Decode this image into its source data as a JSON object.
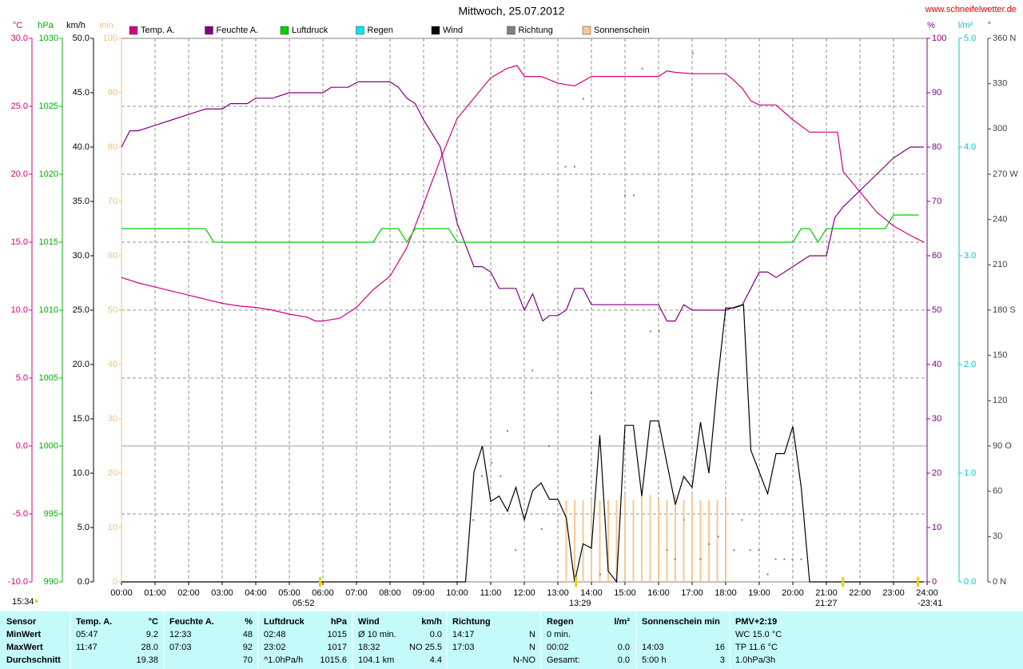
{
  "chart_data": {
    "type": "line",
    "title": "Mittwoch, 25.07.2012",
    "source": "www.schneifelwetter.de",
    "xlim": [
      0,
      24
    ],
    "xticks": [
      {
        "value": 0,
        "label": "00:00"
      },
      {
        "value": 1,
        "label": "01:00"
      },
      {
        "value": 2,
        "label": "02:00"
      },
      {
        "value": 3,
        "label": "03:00"
      },
      {
        "value": 4,
        "label": "04:00"
      },
      {
        "value": 5,
        "label": "05:00"
      },
      {
        "value": 6,
        "label": "06:00"
      },
      {
        "value": 7,
        "label": "07:00"
      },
      {
        "value": 8,
        "label": "08:00"
      },
      {
        "value": 9,
        "label": "09:00"
      },
      {
        "value": 10,
        "label": "10:00"
      },
      {
        "value": 11,
        "label": "11:00"
      },
      {
        "value": 12,
        "label": "12:00"
      },
      {
        "value": 13,
        "label": "13:00"
      },
      {
        "value": 14,
        "label": "14:00"
      },
      {
        "value": 15,
        "label": "15:00"
      },
      {
        "value": 16,
        "label": "16:00"
      },
      {
        "value": 17,
        "label": "17:00"
      },
      {
        "value": 18,
        "label": "18:00"
      },
      {
        "value": 19,
        "label": "19:00"
      },
      {
        "value": 20,
        "label": "20:00"
      },
      {
        "value": 21,
        "label": "21:00"
      },
      {
        "value": 22,
        "label": "22:00"
      },
      {
        "value": 23,
        "label": "23:00"
      },
      {
        "value": 24,
        "label": "24:00"
      }
    ],
    "grid": true,
    "grid_axis": "°C",
    "axes": [
      {
        "label": "°C",
        "side": "left",
        "color": "#d4007f",
        "lim": [
          -10,
          30
        ],
        "ticks": [
          {
            "value": -10,
            "label": "-10.0"
          },
          {
            "value": -5,
            "label": "-5.0"
          },
          {
            "value": 0,
            "label": "0.0"
          },
          {
            "value": 5,
            "label": "5.0"
          },
          {
            "value": 10,
            "label": "10.0"
          },
          {
            "value": 15,
            "label": "15.0"
          },
          {
            "value": 20,
            "label": "20.0"
          },
          {
            "value": 25,
            "label": "25.0"
          },
          {
            "value": 30,
            "label": "30.0"
          }
        ]
      },
      {
        "label": "hPa",
        "side": "left",
        "color": "#00b000",
        "lim": [
          990,
          1030
        ],
        "ticks": [
          990,
          995,
          1000,
          1005,
          1010,
          1015,
          1020,
          1025,
          1030
        ]
      },
      {
        "label": "km/h",
        "side": "left",
        "color": "#000000",
        "lim": [
          0,
          50
        ],
        "ticks": [
          {
            "value": 0,
            "label": "0.0"
          },
          {
            "value": 5,
            "label": "5.0"
          },
          {
            "value": 10,
            "label": "10.0"
          },
          {
            "value": 15,
            "label": "15.0"
          },
          {
            "value": 20,
            "label": "20.0"
          },
          {
            "value": 25,
            "label": "25.0"
          },
          {
            "value": 30,
            "label": "30.0"
          },
          {
            "value": 35,
            "label": "35.0"
          },
          {
            "value": 40,
            "label": "40.0"
          },
          {
            "value": 45,
            "label": "45.0"
          },
          {
            "value": 50,
            "label": "50.0"
          }
        ]
      },
      {
        "label": "min",
        "side": "left",
        "color": "#f0c080",
        "lim": [
          0,
          100
        ],
        "ticks": [
          0,
          10,
          20,
          30,
          40,
          50,
          60,
          70,
          80,
          90,
          100
        ]
      },
      {
        "label": "%",
        "side": "right",
        "color": "#800080",
        "lim": [
          0,
          100
        ],
        "ticks": [
          0,
          10,
          20,
          30,
          40,
          50,
          60,
          70,
          80,
          90,
          100
        ]
      },
      {
        "label": "l/m²",
        "side": "right",
        "color": "#00c8c8",
        "lim": [
          0,
          5
        ],
        "ticks": [
          {
            "value": 0,
            "label": "0.0"
          },
          {
            "value": 1,
            "label": "1.0"
          },
          {
            "value": 2,
            "label": "2.0"
          },
          {
            "value": 3,
            "label": "3.0"
          },
          {
            "value": 4,
            "label": "4.0"
          },
          {
            "value": 5,
            "label": "5.0"
          }
        ]
      },
      {
        "label": "°",
        "side": "right",
        "color": "#404040",
        "lim": [
          0,
          360
        ],
        "ticks": [
          {
            "value": 0,
            "label": "0 N"
          },
          30,
          60,
          {
            "value": 90,
            "label": "90 O"
          },
          120,
          150,
          {
            "value": 180,
            "label": "180 S"
          },
          210,
          240,
          {
            "value": 270,
            "label": "270 W"
          },
          300,
          330,
          {
            "value": 360,
            "label": "360 N"
          }
        ]
      }
    ],
    "series": [
      {
        "name": "Temp. A.",
        "color": "#d4007f",
        "type": "line",
        "axis": "°C",
        "x": [
          0,
          0.5,
          1,
          1.5,
          2,
          2.5,
          3,
          3.5,
          4,
          4.5,
          5,
          5.5,
          5.78,
          6,
          6.5,
          7,
          7.5,
          8,
          8.5,
          9,
          9.5,
          10,
          10.5,
          11,
          11.5,
          11.78,
          12,
          12.5,
          13,
          13.5,
          14,
          14.5,
          15,
          15.5,
          16,
          16.25,
          16.5,
          17,
          17.5,
          18,
          18.25,
          18.5,
          18.75,
          19,
          19.5,
          20,
          20.5,
          21,
          21.33,
          21.5,
          22,
          22.5,
          23,
          23.5,
          23.9
        ],
        "values": [
          12.4,
          12.0,
          11.7,
          11.4,
          11.1,
          10.8,
          10.5,
          10.3,
          10.2,
          10.0,
          9.7,
          9.5,
          9.2,
          9.2,
          9.4,
          10.2,
          11.5,
          12.5,
          14.6,
          17.8,
          21.1,
          24.1,
          25.6,
          27.1,
          27.8,
          28.0,
          27.2,
          27.2,
          26.7,
          26.5,
          27.2,
          27.2,
          27.2,
          27.2,
          27.2,
          27.6,
          27.5,
          27.4,
          27.4,
          27.4,
          26.9,
          26.3,
          25.4,
          25.1,
          25.1,
          24.0,
          23.1,
          23.1,
          23.1,
          20.2,
          18.7,
          17.2,
          16.2,
          15.5,
          15.0
        ]
      },
      {
        "name": "Feuchte A.",
        "color": "#800080",
        "type": "line",
        "axis": "%",
        "x": [
          0,
          0.25,
          0.5,
          1,
          1.5,
          2,
          2.5,
          3,
          3.25,
          3.75,
          4,
          4.5,
          5,
          6,
          6.25,
          6.75,
          7.05,
          8,
          8.25,
          8.5,
          8.75,
          9,
          9.5,
          9.75,
          10,
          10.5,
          10.75,
          11,
          11.25,
          11.75,
          12,
          12.25,
          12.55,
          12.75,
          13,
          13.25,
          13.5,
          13.75,
          14,
          15,
          16,
          16.25,
          16.5,
          16.75,
          17,
          18,
          18.5,
          19,
          19.25,
          19.5,
          20,
          20.5,
          21,
          21.25,
          21.5,
          22,
          22.5,
          23,
          23.5,
          23.9
        ],
        "values": [
          80,
          83,
          83,
          84,
          85,
          86,
          87,
          87,
          88,
          88,
          89,
          89,
          90,
          90,
          91,
          91,
          92,
          92,
          91,
          89,
          88,
          85,
          80,
          73,
          66,
          58,
          58,
          57,
          54,
          54,
          50,
          53,
          48,
          49,
          49,
          50,
          54,
          54,
          51,
          51,
          51,
          48,
          48,
          51,
          50,
          50,
          51,
          57,
          57,
          56,
          58,
          60,
          60,
          67,
          69,
          72,
          75,
          78,
          80,
          80
        ]
      },
      {
        "name": "Luftdruck",
        "color": "#00d000",
        "type": "line",
        "axis": "hPa",
        "x": [
          0,
          2.5,
          2.75,
          7.5,
          7.75,
          8.25,
          8.5,
          8.75,
          9.75,
          10,
          20,
          20.25,
          20.5,
          20.75,
          21,
          22.75,
          23,
          23.75
        ],
        "values": [
          1016,
          1016,
          1015,
          1015,
          1016,
          1016,
          1015,
          1016,
          1016,
          1015,
          1015,
          1016,
          1016,
          1015,
          1016,
          1016,
          1017,
          1017
        ]
      },
      {
        "name": "Regen",
        "color": "#00e8e8",
        "type": "bar",
        "axis": "l/m²",
        "x": [],
        "values": []
      },
      {
        "name": "Wind",
        "color": "#000000",
        "type": "line",
        "axis": "km/h",
        "x": [
          0,
          10.25,
          10.5,
          10.75,
          11,
          11.25,
          11.5,
          11.75,
          12,
          12.25,
          12.5,
          12.75,
          13,
          13.25,
          13.5,
          13.75,
          14,
          14.25,
          14.5,
          14.75,
          15,
          15.25,
          15.5,
          15.75,
          16,
          16.25,
          16.5,
          16.75,
          17,
          17.25,
          17.5,
          17.75,
          18,
          18.25,
          18.53,
          18.75,
          19,
          19.25,
          19.5,
          19.75,
          20,
          20.25,
          20.5,
          23.9
        ],
        "values": [
          0,
          0,
          10.1,
          12.5,
          7.4,
          7.9,
          6.5,
          8.7,
          5.7,
          8.4,
          9.1,
          7.6,
          7.6,
          5.9,
          0,
          3.5,
          3.1,
          13.5,
          1.0,
          0,
          14.4,
          14.4,
          7.9,
          14.8,
          14.8,
          10.9,
          7.1,
          9.7,
          8.7,
          14.7,
          10.0,
          18.2,
          25.2,
          25.2,
          25.5,
          12.1,
          10.1,
          8.1,
          11.8,
          11.8,
          14.3,
          8.7,
          0,
          0
        ]
      },
      {
        "name": "Richtung",
        "color": "#808080",
        "type": "scatter",
        "axis": "°",
        "x": [
          10.48,
          10.74,
          11.03,
          11.29,
          11.5,
          11.74,
          12.24,
          12.52,
          12.74,
          13.23,
          13.5,
          13.76,
          14,
          14.26,
          15,
          15.26,
          15.52,
          15.76,
          16.02,
          16.25,
          16.49,
          16.75,
          17.02,
          17.25,
          17.51,
          17.78,
          18.25,
          18.49,
          18.73,
          18.99,
          19.25,
          19.49,
          19.75,
          19.99,
          20.25
        ],
        "values": [
          41,
          70,
          79,
          70,
          100,
          21,
          140,
          35,
          90,
          275,
          275,
          320,
          125,
          5,
          256,
          256,
          340,
          166,
          166,
          21,
          15,
          41,
          350,
          15,
          25,
          30,
          21,
          41,
          21,
          21,
          5,
          15,
          15,
          15,
          15
        ]
      },
      {
        "name": "Sonnenschein",
        "color": "#f8c890",
        "type": "bar",
        "axis": "min",
        "x": [
          13.25,
          13.5,
          13.75,
          14,
          14.25,
          14.5,
          14.75,
          15,
          15.25,
          15.5,
          15.75,
          16,
          16.25,
          16.5,
          16.75,
          17,
          17.25,
          17.5,
          17.75,
          18
        ],
        "values": [
          15,
          15,
          15,
          15,
          15,
          15,
          15,
          16,
          15,
          16,
          16,
          15,
          15,
          16,
          15,
          16,
          15,
          15,
          15,
          15
        ]
      }
    ],
    "astro_times": [
      "15:34",
      "05:52",
      "13:29",
      "21:27",
      "-23:41"
    ]
  },
  "table": {
    "header": [
      {
        "left": "Sensor"
      },
      {
        "left": "Temp. A.",
        "right": "°C"
      },
      {
        "left": "Feuchte A.",
        "right": "%"
      },
      {
        "left": "Luftdruck",
        "right": "hPa"
      },
      {
        "left": "Wind",
        "right": "km/h"
      },
      {
        "left": "Richtung"
      },
      {
        "left": "Regen",
        "right": "l/m²"
      },
      {
        "left": "Sonnenschein min"
      },
      {
        "left": "PMV+2:19"
      }
    ],
    "rows": [
      [
        {
          "left": "MinWert"
        },
        {
          "left": "05:47",
          "right": "9.2"
        },
        {
          "left": "12:33",
          "right": "48"
        },
        {
          "left": "02:48",
          "right": "1015"
        },
        {
          "left": "Ø 10 min.",
          "right": "0.0"
        },
        {
          "left": "14:17",
          "right": "N"
        },
        {
          "left": "0 min."
        },
        {},
        {
          "left": "WC 15.0 °C"
        }
      ],
      [
        {
          "left": "MaxWert"
        },
        {
          "left": "11:47",
          "right": "28.0"
        },
        {
          "left": "07:03",
          "right": "92"
        },
        {
          "left": "23:02",
          "right": "1017"
        },
        {
          "left": "18:32",
          "right": "NO 25.5"
        },
        {
          "left": "17:03",
          "right": "N"
        },
        {
          "left": "00:02",
          "right": "0.0"
        },
        {
          "left": "14:03",
          "right": "16"
        },
        {
          "left": "TP 11.6 °C"
        }
      ],
      [
        {
          "left": "Durchschnitt"
        },
        {
          "right": "19.38"
        },
        {
          "right": "70"
        },
        {
          "left": "^1.0hPa/h",
          "right": "1015.6"
        },
        {
          "left": "104.1 km",
          "right": "4.4"
        },
        {
          "right": "N-NO"
        },
        {
          "left": "Gesamt:",
          "right": "0.0"
        },
        {
          "left": "5:00 h",
          "right": "3"
        },
        {
          "left": "1.0hPa/3h"
        }
      ]
    ]
  }
}
